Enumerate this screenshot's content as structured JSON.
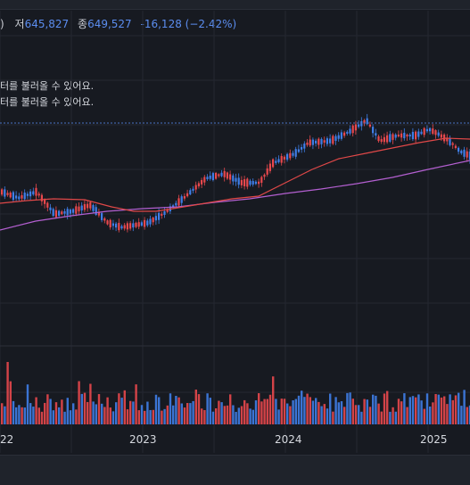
{
  "legend": {
    "paren": ")",
    "low_label": "저",
    "low_value": "645,827",
    "close_label": "종",
    "close_value": "649,527",
    "change": "-16,128",
    "change_pct": "(−2.42%)"
  },
  "notices": [
    "터를 불러올 수 있어요.",
    "터를 불러올 수 있어요."
  ],
  "colors": {
    "background": "#171a21",
    "up": "#e8484d",
    "down": "#3f7ee8",
    "ma_short": "#e04848",
    "ma_long": "#b35fd0",
    "reference_line": "#4a72c4"
  },
  "chart_data": {
    "type": "candlestick",
    "x_ticks": [
      "22",
      "2023",
      "2024",
      "2025"
    ],
    "overlays": [
      "moving-average-short",
      "moving-average-long",
      "reference-line-dotted"
    ],
    "volume_panel": true
  }
}
